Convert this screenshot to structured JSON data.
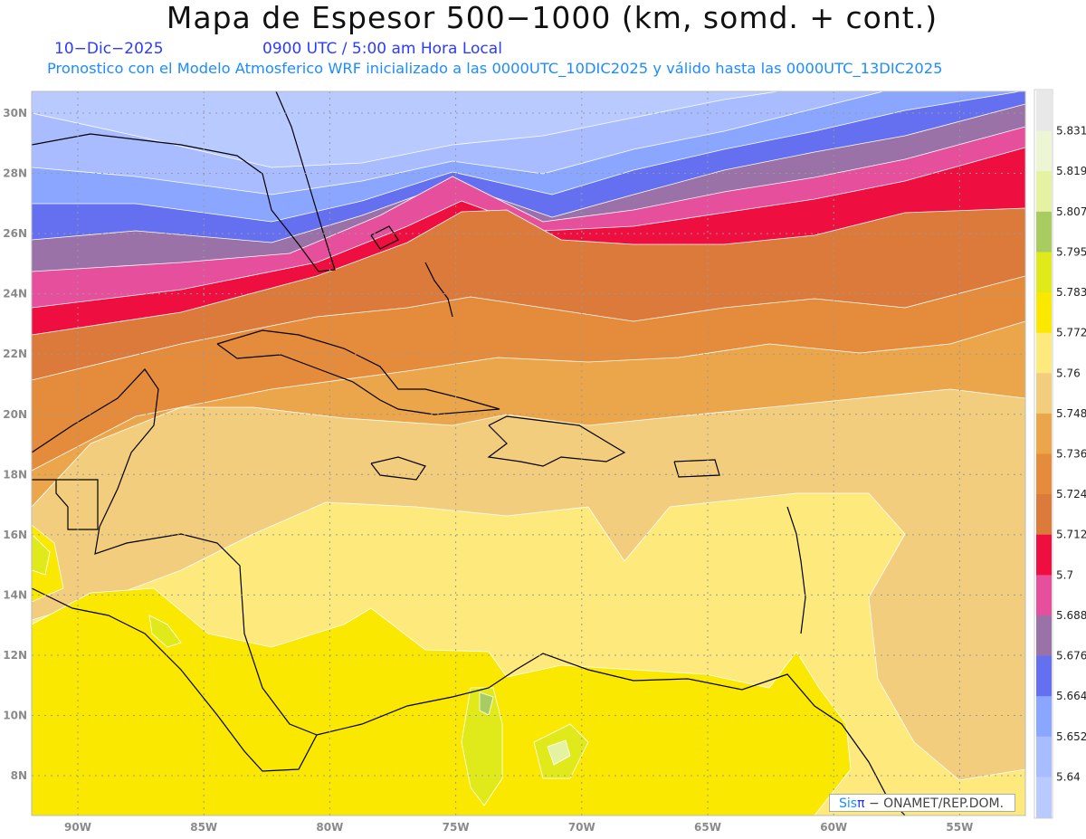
{
  "header": {
    "title": "Mapa de Espesor 500−1000 (km, somd. + cont.)",
    "date": "10−Dic−2025",
    "time": "0900 UTC / 5:00 am Hora Local",
    "subtitle": "Pronostico con el Modelo Atmosferico WRF inicializado a las 0000UTC_10DIC2025 y válido hasta las  0000UTC_13DIC2025"
  },
  "axes": {
    "lon_labels": [
      "90W",
      "85W",
      "80W",
      "75W",
      "70W",
      "65W",
      "60W",
      "55W"
    ],
    "lat_labels": [
      "30N",
      "28N",
      "26N",
      "24N",
      "22N",
      "20N",
      "18N",
      "16N",
      "14N",
      "12N",
      "10N",
      "8N"
    ]
  },
  "colorbar": {
    "labels": [
      "5.831",
      "5.819",
      "5.807",
      "5.795",
      "5.783",
      "5.772",
      "5.76",
      "5.748",
      "5.736",
      "5.724",
      "5.712",
      "5.7",
      "5.688",
      "5.676",
      "5.664",
      "5.652",
      "5.64"
    ],
    "colors": [
      "#e8e8e8",
      "#eef5d4",
      "#e4f2a2",
      "#a8cc62",
      "#e0ea1a",
      "#fbe800",
      "#fde97c",
      "#f2cd7e",
      "#eba54a",
      "#e58c3c",
      "#db7a3a",
      "#ee0e40",
      "#e64f9c",
      "#9a72a8",
      "#6470f0",
      "#8aa6ff",
      "#a8bcff",
      "#b8caff"
    ]
  },
  "credit": {
    "brand_a": "Sis",
    "brand_b": "π",
    "text": " −  ONAMET/REP.DOM."
  }
}
